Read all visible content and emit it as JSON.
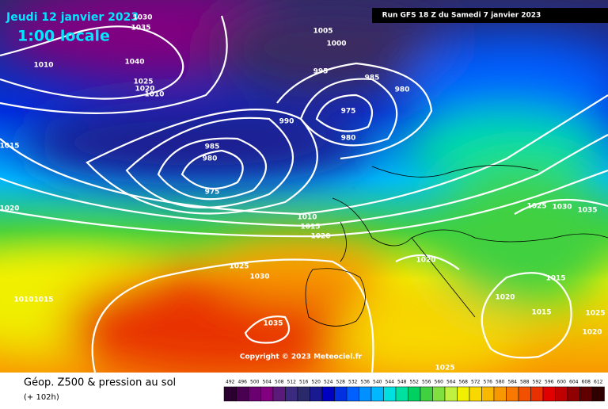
{
  "header": {
    "title": "Jeudi 12 janvier 2023",
    "time": "1:00 locale",
    "run": "Run GFS 18 Z du Samedi 7 janvier 2023",
    "copyright": "Copyright © 2023 Meteociel.fr"
  },
  "isobar_labels": [
    "1030",
    "1035",
    "1040",
    "1025",
    "1020",
    "1010",
    "1010",
    "1005",
    "1000",
    "995",
    "985",
    "980",
    "975",
    "980",
    "990",
    "985",
    "980",
    "975",
    "1015",
    "1020",
    "1010",
    "1015",
    "1020",
    "1025",
    "1030",
    "1020",
    "1025",
    "1030",
    "1035",
    "1015",
    "1020",
    "1015",
    "1025",
    "1020",
    "1010",
    "1015",
    "1035",
    "1025"
  ],
  "legend": {
    "title": "Géop. Z500 & pression au sol",
    "lead": "(+ 102h)",
    "scale": [
      {
        "label": "492",
        "color": "#2b0030"
      },
      {
        "label": "496",
        "color": "#4a0050"
      },
      {
        "label": "500",
        "color": "#6a0070"
      },
      {
        "label": "504",
        "color": "#800080"
      },
      {
        "label": "508",
        "color": "#5a1a7a"
      },
      {
        "label": "512",
        "color": "#3a2a80"
      },
      {
        "label": "516",
        "color": "#2a2a6a"
      },
      {
        "label": "520",
        "color": "#1a1a90"
      },
      {
        "label": "524",
        "color": "#0000c0"
      },
      {
        "label": "528",
        "color": "#0030e0"
      },
      {
        "label": "532",
        "color": "#0060ff"
      },
      {
        "label": "536",
        "color": "#0090ff"
      },
      {
        "label": "540",
        "color": "#00b8ff"
      },
      {
        "label": "544",
        "color": "#00e0e0"
      },
      {
        "label": "548",
        "color": "#00e0a0"
      },
      {
        "label": "552",
        "color": "#00d060"
      },
      {
        "label": "556",
        "color": "#40d040"
      },
      {
        "label": "560",
        "color": "#80e040"
      },
      {
        "label": "564",
        "color": "#c0f040"
      },
      {
        "label": "568",
        "color": "#f0f000"
      },
      {
        "label": "572",
        "color": "#f8d800"
      },
      {
        "label": "576",
        "color": "#f8b800"
      },
      {
        "label": "580",
        "color": "#f89800"
      },
      {
        "label": "584",
        "color": "#f87800"
      },
      {
        "label": "588",
        "color": "#f05000"
      },
      {
        "label": "592",
        "color": "#e83000"
      },
      {
        "label": "596",
        "color": "#e00000"
      },
      {
        "label": "600",
        "color": "#c00000"
      },
      {
        "label": "604",
        "color": "#900000"
      },
      {
        "label": "608",
        "color": "#600000"
      },
      {
        "label": "612",
        "color": "#300000"
      }
    ]
  }
}
